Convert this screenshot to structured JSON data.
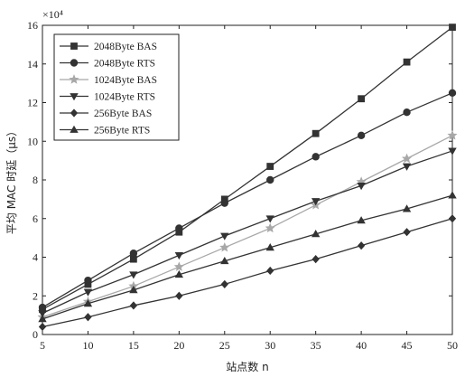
{
  "chart_data": {
    "type": "line",
    "x": [
      5,
      10,
      15,
      20,
      25,
      30,
      35,
      40,
      45,
      50
    ],
    "xlabel": "站点数 n",
    "ylabel": "平均 MAC 时延（μs）",
    "y_exponent_label": "×10⁴",
    "xlim": [
      5,
      50
    ],
    "ylim": [
      0,
      16
    ],
    "xticks": [
      "5",
      "10",
      "15",
      "20",
      "25",
      "30",
      "35",
      "40",
      "45",
      "50"
    ],
    "yticks": [
      "0",
      "2",
      "4",
      "6",
      "8",
      "10",
      "12",
      "14",
      "16"
    ],
    "grid": false,
    "legend_position": "top-left",
    "series": [
      {
        "name": "2048Byte BAS",
        "marker": "square",
        "color": "#333333",
        "values": [
          1.3,
          2.6,
          3.9,
          5.3,
          7.0,
          8.7,
          10.4,
          12.2,
          14.1,
          15.9
        ]
      },
      {
        "name": "2048Byte RTS",
        "marker": "circle",
        "color": "#333333",
        "values": [
          1.4,
          2.8,
          4.2,
          5.5,
          6.8,
          8.0,
          9.2,
          10.3,
          11.5,
          12.5
        ]
      },
      {
        "name": "1024Byte BAS",
        "marker": "star",
        "color": "#a8a8a8",
        "values": [
          0.9,
          1.7,
          2.5,
          3.5,
          4.5,
          5.5,
          6.7,
          7.9,
          9.1,
          10.3
        ]
      },
      {
        "name": "1024Byte RTS",
        "marker": "triangle-down",
        "color": "#333333",
        "values": [
          1.1,
          2.2,
          3.1,
          4.1,
          5.1,
          6.0,
          6.9,
          7.7,
          8.7,
          9.5
        ]
      },
      {
        "name": "256Byte BAS",
        "marker": "diamond",
        "color": "#333333",
        "values": [
          0.4,
          0.9,
          1.5,
          2.0,
          2.6,
          3.3,
          3.9,
          4.6,
          5.3,
          6.0
        ]
      },
      {
        "name": "256Byte RTS",
        "marker": "triangle-up",
        "color": "#333333",
        "values": [
          0.8,
          1.6,
          2.3,
          3.1,
          3.8,
          4.5,
          5.2,
          5.9,
          6.5,
          7.2
        ]
      }
    ]
  }
}
